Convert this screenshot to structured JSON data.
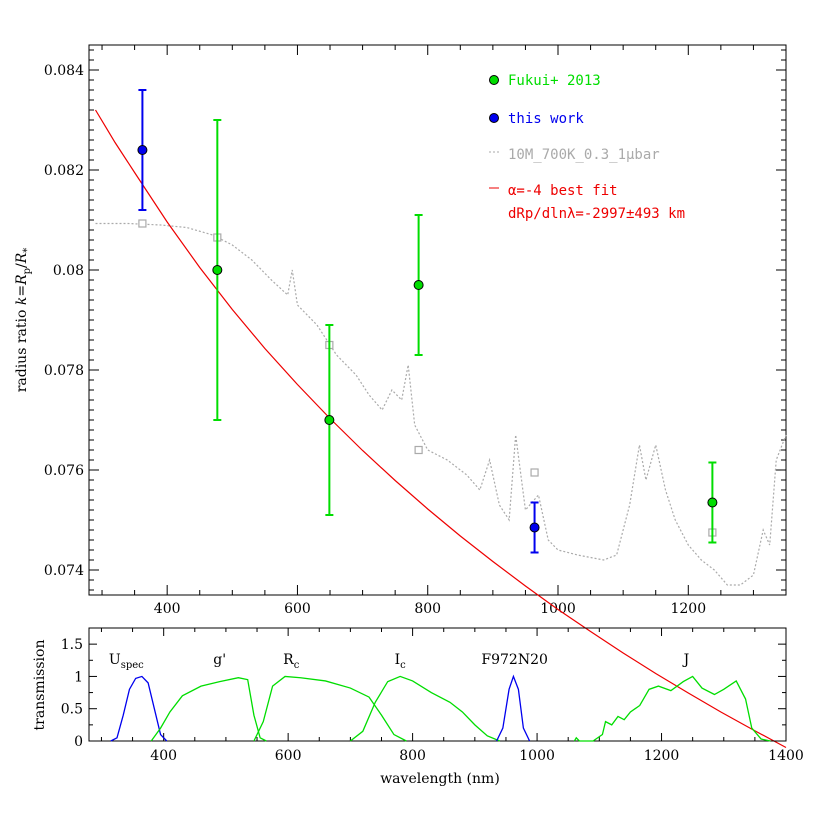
{
  "chart_data": [
    {
      "type": "scatter",
      "ylabel": "radius ratio k=Rp/R*",
      "xlim": [
        280,
        1350
      ],
      "ylim": [
        0.0735,
        0.0845
      ],
      "x_ticks": [
        400,
        600,
        800,
        1000,
        1200
      ],
      "y_ticks": [
        0.074,
        0.076,
        0.078,
        0.08,
        0.082,
        0.084
      ],
      "x_tick_labels": [
        "400",
        "600",
        "800",
        "1000",
        "1200"
      ],
      "y_tick_labels": [
        "0.074",
        "0.076",
        "0.078",
        "0.08",
        "0.082",
        "0.084"
      ],
      "legend_position": "top-right",
      "colors": {
        "fukui": "#00dd00",
        "this_work": "#0000ee",
        "model": "#aaaaaa",
        "fit": "#ee0000"
      },
      "series": [
        {
          "name": "Fukui+ 2013",
          "points": [
            {
              "x": 477,
              "y": 0.08,
              "err": 0.003
            },
            {
              "x": 649,
              "y": 0.077,
              "err": 0.0019
            },
            {
              "x": 786,
              "y": 0.0797,
              "err": 0.0014
            },
            {
              "x": 1237,
              "y": 0.07535,
              "err": 0.0008
            }
          ]
        },
        {
          "name": "this work",
          "points": [
            {
              "x": 362,
              "y": 0.0824,
              "err": 0.0012
            },
            {
              "x": 964,
              "y": 0.07485,
              "err": 0.0005
            }
          ]
        },
        {
          "name": "10M_700K_0.3_1μbar",
          "style": "dotted",
          "curve": [
            [
              290,
              0.08093
            ],
            [
              340,
              0.08093
            ],
            [
              390,
              0.0809
            ],
            [
              430,
              0.08085
            ],
            [
              470,
              0.0807
            ],
            [
              500,
              0.0805
            ],
            [
              530,
              0.0802
            ],
            [
              560,
              0.0798
            ],
            [
              585,
              0.0795
            ],
            [
              592,
              0.08
            ],
            [
              600,
              0.0793
            ],
            [
              630,
              0.0789
            ],
            [
              660,
              0.0783
            ],
            [
              690,
              0.0779
            ],
            [
              710,
              0.0775
            ],
            [
              730,
              0.0772
            ],
            [
              745,
              0.0776
            ],
            [
              760,
              0.0774
            ],
            [
              770,
              0.0781
            ],
            [
              780,
              0.0769
            ],
            [
              800,
              0.0764
            ],
            [
              830,
              0.0762
            ],
            [
              860,
              0.0759
            ],
            [
              880,
              0.0756
            ],
            [
              895,
              0.0762
            ],
            [
              910,
              0.0753
            ],
            [
              925,
              0.075
            ],
            [
              935,
              0.0767
            ],
            [
              950,
              0.0752
            ],
            [
              970,
              0.0755
            ],
            [
              985,
              0.0746
            ],
            [
              1000,
              0.0744
            ],
            [
              1030,
              0.0743
            ],
            [
              1070,
              0.0742
            ],
            [
              1090,
              0.0743
            ],
            [
              1110,
              0.0753
            ],
            [
              1125,
              0.0765
            ],
            [
              1135,
              0.0758
            ],
            [
              1150,
              0.0765
            ],
            [
              1165,
              0.0756
            ],
            [
              1180,
              0.075
            ],
            [
              1200,
              0.0745
            ],
            [
              1220,
              0.0742
            ],
            [
              1240,
              0.074
            ],
            [
              1260,
              0.0737
            ],
            [
              1280,
              0.0737
            ],
            [
              1300,
              0.0739
            ],
            [
              1315,
              0.0748
            ],
            [
              1325,
              0.0745
            ],
            [
              1335,
              0.0762
            ],
            [
              1350,
              0.0767
            ]
          ],
          "band_markers": [
            {
              "x": 362,
              "y": 0.08093
            },
            {
              "x": 477,
              "y": 0.08065
            },
            {
              "x": 649,
              "y": 0.0785
            },
            {
              "x": 786,
              "y": 0.0764
            },
            {
              "x": 964,
              "y": 0.07595
            },
            {
              "x": 1237,
              "y": 0.07475
            }
          ]
        },
        {
          "name": "α=-4 best fit",
          "name_line2": "dRp/dlnλ=-2997±493 km",
          "style": "line",
          "curve": [
            [
              290,
              0.0832
            ],
            [
              320,
              0.08255
            ],
            [
              350,
              0.08195
            ],
            [
              400,
              0.08096
            ],
            [
              450,
              0.08005
            ],
            [
              500,
              0.07921
            ],
            [
              550,
              0.07843
            ],
            [
              600,
              0.07771
            ],
            [
              650,
              0.07703
            ],
            [
              700,
              0.07639
            ],
            [
              750,
              0.07579
            ],
            [
              800,
              0.07522
            ],
            [
              850,
              0.07468
            ],
            [
              900,
              0.07417
            ],
            [
              950,
              0.07368
            ],
            [
              1000,
              0.07321
            ],
            [
              1050,
              0.07277
            ],
            [
              1100,
              0.07234
            ],
            [
              1150,
              0.07193
            ],
            [
              1200,
              0.07154
            ],
            [
              1250,
              0.07116
            ],
            [
              1300,
              0.0708
            ],
            [
              1350,
              0.07045
            ]
          ]
        }
      ]
    },
    {
      "type": "line",
      "xlabel": "wavelength (nm)",
      "ylabel": "transmission",
      "xlim": [
        280,
        1400
      ],
      "ylim": [
        0,
        1.75
      ],
      "x_ticks": [
        400,
        600,
        800,
        1000,
        1200,
        1400
      ],
      "y_ticks": [
        0,
        0.5,
        1,
        1.5
      ],
      "x_tick_labels": [
        "400",
        "600",
        "800",
        "1000",
        "1200",
        "1400"
      ],
      "y_tick_labels": [
        "0",
        "0.5",
        "1",
        "1.5"
      ],
      "bands": [
        {
          "label": "U",
          "sub": "spec",
          "label_x": 340,
          "color": "#0000ee",
          "curve": [
            [
              315,
              0
            ],
            [
              325,
              0.05
            ],
            [
              335,
              0.4
            ],
            [
              345,
              0.8
            ],
            [
              355,
              0.97
            ],
            [
              365,
              1.0
            ],
            [
              375,
              0.9
            ],
            [
              385,
              0.5
            ],
            [
              395,
              0.1
            ],
            [
              405,
              0
            ]
          ]
        },
        {
          "label": "g'",
          "sub": "",
          "label_x": 490,
          "color": "#00dd00",
          "curve": [
            [
              380,
              0
            ],
            [
              395,
              0.2
            ],
            [
              410,
              0.45
            ],
            [
              430,
              0.7
            ],
            [
              460,
              0.85
            ],
            [
              490,
              0.92
            ],
            [
              520,
              0.98
            ],
            [
              535,
              0.95
            ],
            [
              545,
              0.4
            ],
            [
              555,
              0.05
            ],
            [
              565,
              0
            ]
          ]
        },
        {
          "label": "R",
          "sub": "c",
          "label_x": 605,
          "color": "#00dd00",
          "curve": [
            [
              545,
              0
            ],
            [
              560,
              0.3
            ],
            [
              575,
              0.85
            ],
            [
              595,
              1.0
            ],
            [
              620,
              0.98
            ],
            [
              660,
              0.93
            ],
            [
              700,
              0.82
            ],
            [
              730,
              0.68
            ],
            [
              750,
              0.4
            ],
            [
              770,
              0.1
            ],
            [
              790,
              0
            ]
          ]
        },
        {
          "label": "I",
          "sub": "c",
          "label_x": 780,
          "color": "#00dd00",
          "curve": [
            [
              700,
              0
            ],
            [
              720,
              0.15
            ],
            [
              740,
              0.6
            ],
            [
              760,
              0.92
            ],
            [
              780,
              1.0
            ],
            [
              800,
              0.93
            ],
            [
              830,
              0.75
            ],
            [
              860,
              0.6
            ],
            [
              880,
              0.45
            ],
            [
              900,
              0.25
            ],
            [
              920,
              0.08
            ],
            [
              940,
              0
            ]
          ]
        },
        {
          "label": "F972N20",
          "sub": "",
          "label_x": 964,
          "color": "#0000ee",
          "curve": [
            [
              935,
              0
            ],
            [
              945,
              0.2
            ],
            [
              955,
              0.8
            ],
            [
              962,
              1.0
            ],
            [
              970,
              0.8
            ],
            [
              978,
              0.2
            ],
            [
              988,
              0
            ]
          ]
        },
        {
          "label": "J",
          "sub": "",
          "label_x": 1240,
          "color": "#00dd00",
          "curve": [
            [
              1060,
              0
            ],
            [
              1063,
              0.05
            ],
            [
              1068,
              0
            ],
            [
              1090,
              0
            ],
            [
              1105,
              0.1
            ],
            [
              1110,
              0.3
            ],
            [
              1120,
              0.25
            ],
            [
              1130,
              0.38
            ],
            [
              1140,
              0.33
            ],
            [
              1150,
              0.45
            ],
            [
              1165,
              0.55
            ],
            [
              1180,
              0.8
            ],
            [
              1195,
              0.85
            ],
            [
              1215,
              0.78
            ],
            [
              1235,
              0.92
            ],
            [
              1250,
              1.0
            ],
            [
              1265,
              0.82
            ],
            [
              1285,
              0.72
            ],
            [
              1300,
              0.8
            ],
            [
              1320,
              0.93
            ],
            [
              1335,
              0.65
            ],
            [
              1345,
              0.2
            ],
            [
              1360,
              0.03
            ],
            [
              1375,
              0
            ]
          ]
        }
      ]
    }
  ]
}
